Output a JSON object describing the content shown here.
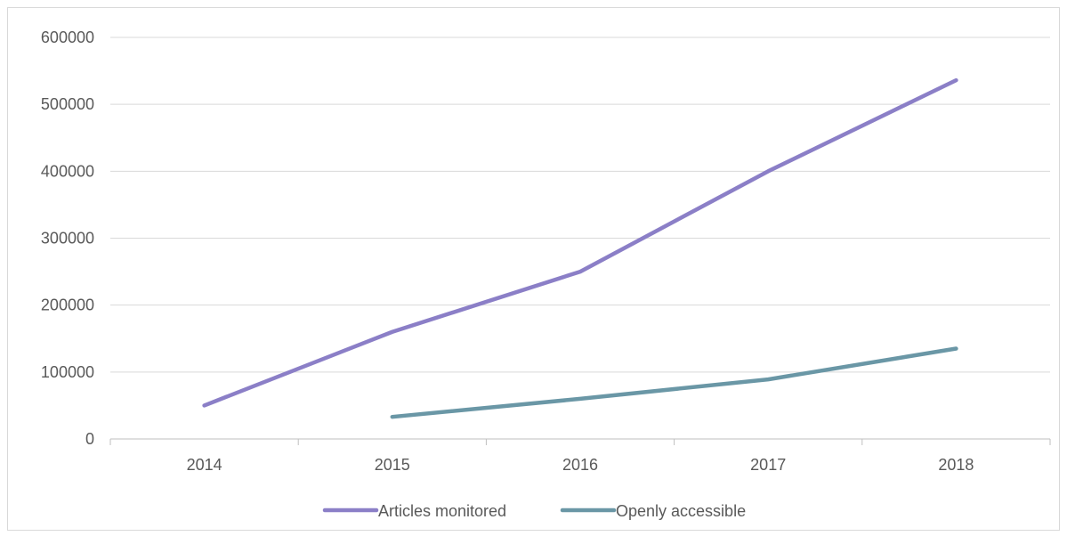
{
  "chart_data": {
    "type": "line",
    "title": "",
    "xlabel": "",
    "ylabel": "",
    "categories": [
      "2014",
      "2015",
      "2016",
      "2017",
      "2018"
    ],
    "ylim": [
      0,
      600000
    ],
    "yticks": [
      "0",
      "100000",
      "200000",
      "300000",
      "400000",
      "500000",
      "600000"
    ],
    "grid": true,
    "legend_position": "bottom",
    "series": [
      {
        "name": "Articles monitored",
        "color": "#8B7FC7",
        "values": [
          50000,
          160000,
          250000,
          400000,
          536000
        ]
      },
      {
        "name": "Openly accessible",
        "color": "#6A97A6",
        "values": [
          null,
          33000,
          60000,
          89000,
          135000
        ]
      }
    ]
  }
}
